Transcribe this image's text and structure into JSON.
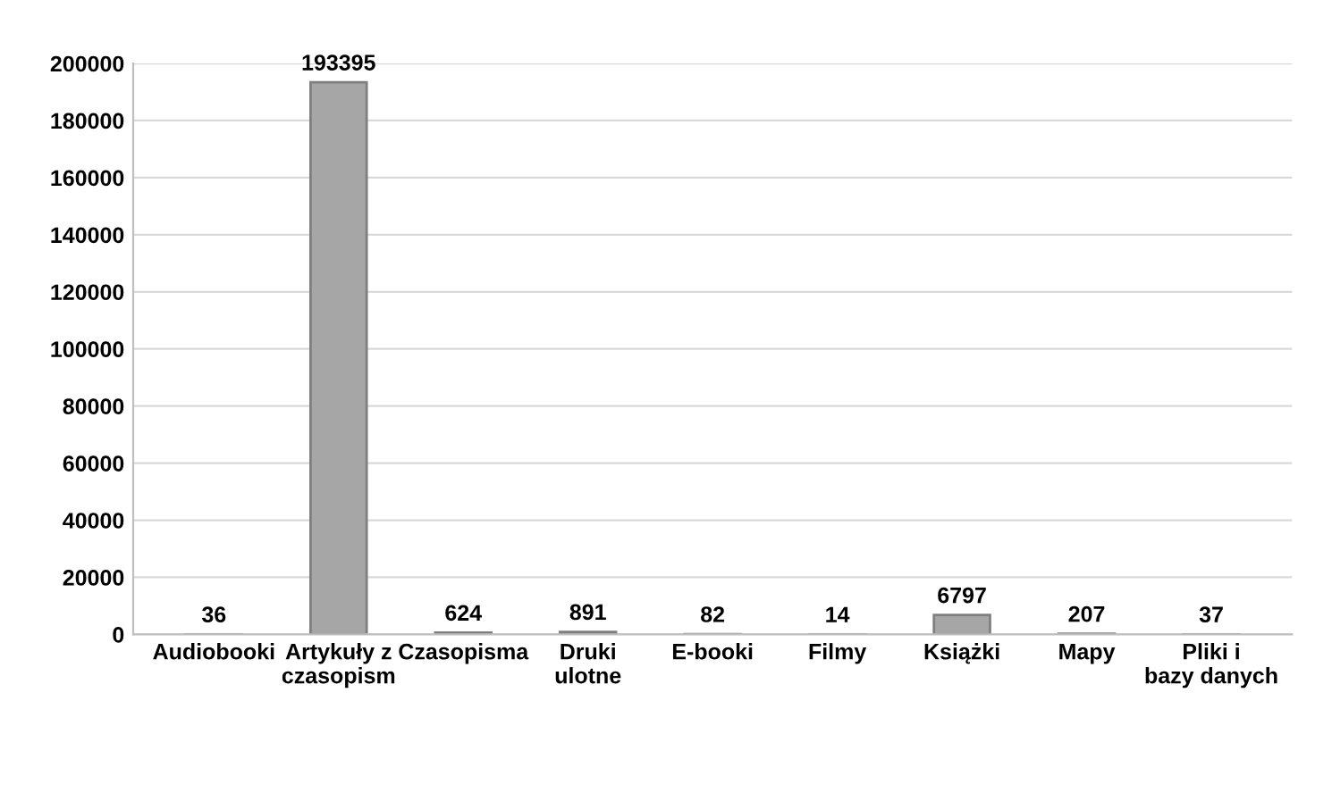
{
  "chart_data": {
    "type": "bar",
    "categories": [
      "Audiobooki",
      "Artykuły z czasopism",
      "Czasopisma",
      "Druki ulotne",
      "E-booki",
      "Filmy",
      "Książki",
      "Mapy",
      "Pliki i bazy danych"
    ],
    "values": [
      36,
      193395,
      624,
      891,
      82,
      14,
      6797,
      207,
      37
    ],
    "color": "#a6a6a6",
    "ylim": [
      0,
      200000
    ],
    "yticks": [
      0,
      20000,
      40000,
      60000,
      80000,
      100000,
      120000,
      140000,
      160000,
      180000,
      200000
    ],
    "grid": "y",
    "data_labels": true
  }
}
